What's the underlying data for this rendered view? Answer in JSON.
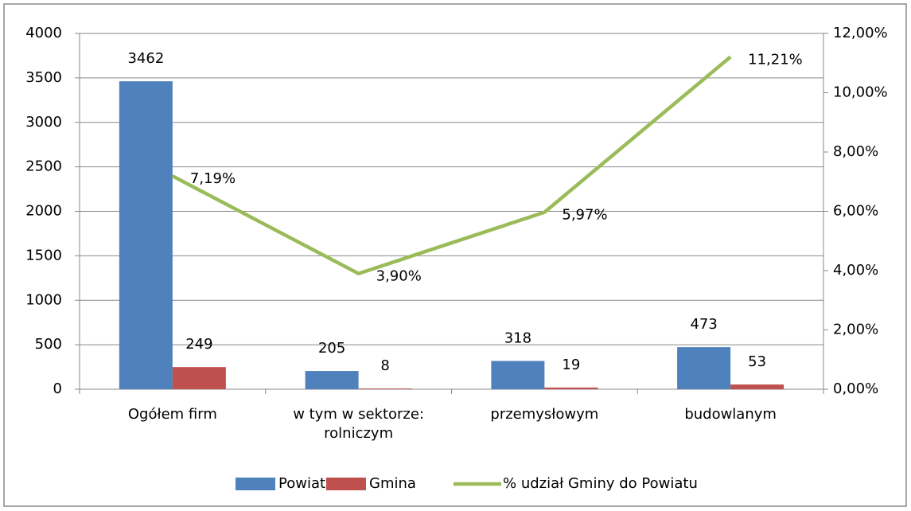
{
  "chart_data": {
    "type": "bar",
    "categories": [
      "Ogółem firm",
      "w tym w sektorze: rolniczym",
      "przemysłowym",
      "budowlanym"
    ],
    "series": [
      {
        "name": "Powiat",
        "color": "#4f81bd",
        "values": [
          3462,
          205,
          318,
          473
        ]
      },
      {
        "name": "Gmina",
        "color": "#c0504d",
        "values": [
          249,
          8,
          19,
          53
        ]
      },
      {
        "name": "% udział Gminy do Powiatu",
        "type": "line",
        "axis": "y2",
        "color": "#9bbb59",
        "values": [
          7.19,
          3.9,
          5.97,
          11.21
        ],
        "value_labels": [
          "7,19%",
          "3,90%",
          "5,97%",
          "11,21%"
        ]
      }
    ],
    "ylim": [
      0,
      4000
    ],
    "yticks": [
      0,
      500,
      1000,
      1500,
      2000,
      2500,
      3000,
      3500,
      4000
    ],
    "y2lim": [
      0,
      12
    ],
    "y2ticks": [
      {
        "value": 0,
        "label": "0,00%"
      },
      {
        "value": 2,
        "label": "2,00%"
      },
      {
        "value": 4,
        "label": "4,00%"
      },
      {
        "value": 6,
        "label": "6,00%"
      },
      {
        "value": 8,
        "label": "8,00%"
      },
      {
        "value": 10,
        "label": "10,00%"
      },
      {
        "value": 12,
        "label": "12,00%"
      }
    ],
    "grid": true,
    "legend": "bottom"
  }
}
